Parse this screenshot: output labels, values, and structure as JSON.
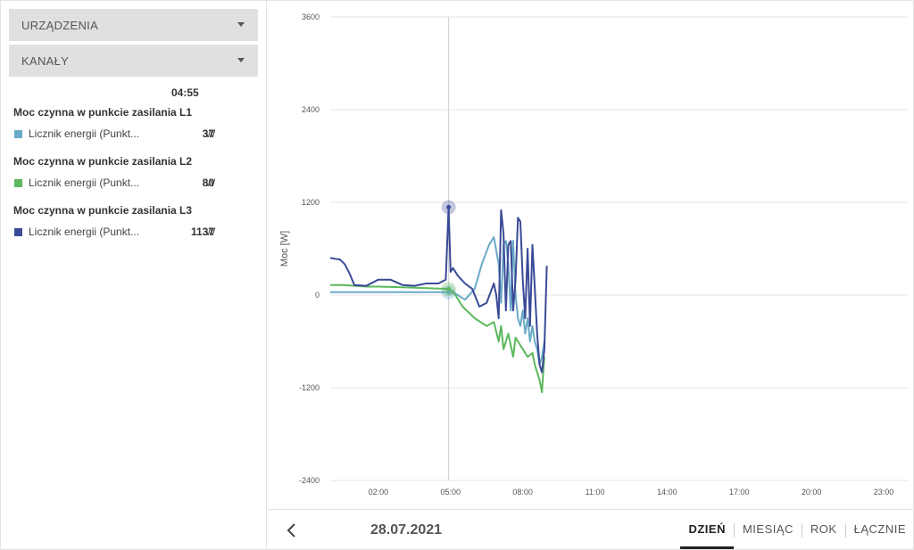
{
  "sidebar": {
    "devices_dropdown": "URZĄDZENIA",
    "channels_dropdown": "KANAŁY",
    "cursor_time": "04:55",
    "groups": [
      {
        "title": "Moc czynna w punkcie zasilania L1",
        "label": "Licznik energii (Punkt...",
        "value": "37",
        "unit": "W",
        "color": "#6aaac8"
      },
      {
        "title": "Moc czynna w punkcie zasilania L2",
        "label": "Licznik energii (Punkt...",
        "value": "80",
        "unit": "W",
        "color": "#5cb85c"
      },
      {
        "title": "Moc czynna w punkcie zasilania L3",
        "label": "Licznik energii (Punkt...",
        "value": "1137",
        "unit": "W",
        "color": "#3a4a96"
      }
    ]
  },
  "chart_data": {
    "type": "line",
    "ylabel": "Moc [W]",
    "xlabel": "",
    "ylim": [
      -2400,
      3600
    ],
    "yticks": [
      "3600",
      "2400",
      "1200",
      "0",
      "-1200",
      "-2400"
    ],
    "ytick_values": [
      3600,
      2400,
      1200,
      0,
      -1200,
      -2400
    ],
    "xlim": [
      0,
      24
    ],
    "xticks": [
      "02:00",
      "05:00",
      "08:00",
      "11:00",
      "14:00",
      "17:00",
      "20:00",
      "23:00"
    ],
    "xtick_values": [
      2,
      5,
      8,
      11,
      14,
      17,
      20,
      23
    ],
    "cursor_x": 4.92,
    "grid": true,
    "series": [
      {
        "name": "L1",
        "color": "#6aaac8",
        "x": [
          0,
          1,
          2,
          3,
          4,
          4.9,
          5.2,
          5.6,
          6.0,
          6.3,
          6.6,
          6.8,
          7.0,
          7.1,
          7.2,
          7.3,
          7.4,
          7.5,
          7.6,
          7.7,
          7.8,
          7.9,
          8.0,
          8.1,
          8.2,
          8.3,
          8.4,
          8.5,
          8.6,
          8.7,
          8.8,
          8.9
        ],
        "values": [
          37,
          37,
          37,
          37,
          37,
          37,
          20,
          -60,
          80,
          400,
          650,
          750,
          400,
          -100,
          650,
          700,
          400,
          -200,
          700,
          0,
          -300,
          -400,
          -200,
          -500,
          -300,
          -600,
          -400,
          -600,
          -700,
          -900,
          -800,
          -600
        ]
      },
      {
        "name": "L2",
        "color": "#5cb85c",
        "x": [
          0,
          0.5,
          1,
          1.5,
          2,
          3,
          4,
          4.9,
          5.1,
          5.5,
          6.0,
          6.5,
          6.8,
          7.0,
          7.1,
          7.2,
          7.4,
          7.6,
          7.7,
          7.8,
          8.0,
          8.2,
          8.4,
          8.5,
          8.6,
          8.7,
          8.8,
          8.85,
          8.9
        ],
        "values": [
          130,
          130,
          120,
          110,
          110,
          100,
          90,
          80,
          50,
          -150,
          -300,
          -400,
          -350,
          -600,
          -400,
          -700,
          -500,
          -800,
          -550,
          -600,
          -700,
          -800,
          -750,
          -900,
          -1000,
          -1100,
          -1260,
          -1000,
          -800
        ]
      },
      {
        "name": "L3",
        "color": "#3a4a96",
        "x": [
          0,
          0.2,
          0.4,
          0.6,
          0.8,
          1.0,
          1.5,
          2.0,
          2.5,
          3.0,
          3.5,
          4.0,
          4.5,
          4.8,
          4.92,
          5.0,
          5.1,
          5.3,
          5.6,
          5.9,
          6.2,
          6.5,
          6.8,
          6.9,
          7.0,
          7.1,
          7.2,
          7.3,
          7.4,
          7.5,
          7.6,
          7.7,
          7.8,
          7.9,
          8.0,
          8.1,
          8.2,
          8.3,
          8.4,
          8.5,
          8.6,
          8.7,
          8.8,
          8.9,
          9.0
        ],
        "values": [
          480,
          470,
          460,
          400,
          280,
          130,
          120,
          200,
          200,
          130,
          120,
          150,
          150,
          200,
          1137,
          300,
          350,
          250,
          150,
          80,
          -150,
          -100,
          150,
          0,
          -300,
          1100,
          800,
          -200,
          650,
          700,
          -200,
          200,
          1000,
          950,
          200,
          -300,
          600,
          -400,
          650,
          100,
          -500,
          -900,
          -1000,
          -700,
          380
        ]
      }
    ]
  },
  "bottom": {
    "date": "28.07.2021",
    "tabs": [
      "DZIEŃ",
      "MIESIĄC",
      "ROK",
      "ŁĄCZNIE"
    ],
    "active_tab": "DZIEŃ"
  }
}
